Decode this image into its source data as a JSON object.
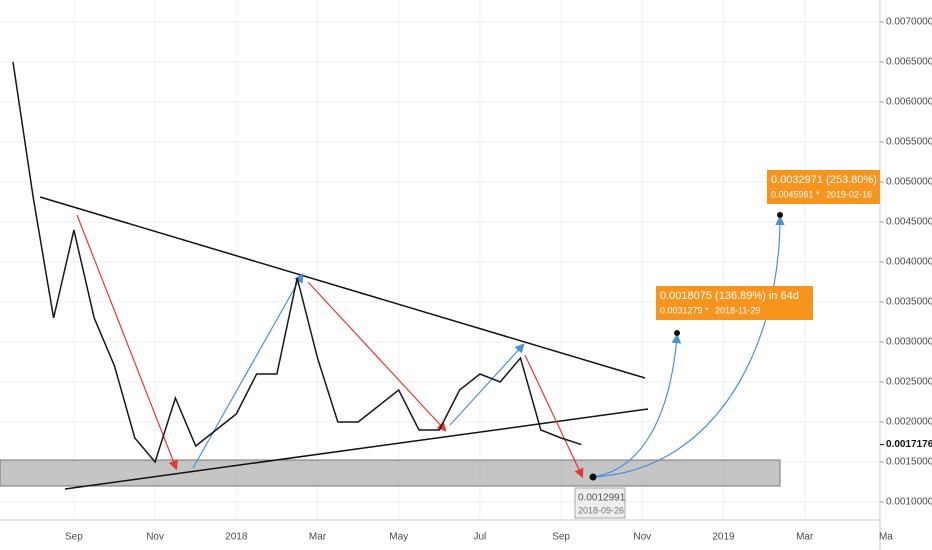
{
  "chart_data": {
    "type": "line",
    "color": "#131722",
    "grid": true,
    "categories": [
      null,
      null,
      null,
      "Sep",
      null,
      null,
      null,
      "Nov",
      null,
      null,
      null,
      "2018",
      null,
      null,
      null,
      "Mar",
      null,
      null,
      null,
      "May",
      null,
      null,
      null,
      "Jul",
      null,
      null,
      null,
      "Sep",
      null,
      null,
      null,
      "Nov",
      null,
      null,
      null,
      "2019",
      null,
      null,
      null,
      "Mar",
      null,
      null,
      null,
      "Ma"
    ],
    "values": [
      0.0065,
      0.0048,
      0.0033,
      0.0044,
      0.0033,
      0.0027,
      0.0018,
      0.0015,
      0.0023,
      0.0017,
      0.0019,
      0.0021,
      0.0026,
      0.0026,
      0.0038,
      0.0028,
      0.002,
      0.002,
      0.0022,
      0.0024,
      0.0019,
      0.0019,
      0.0024,
      0.0026,
      0.0025,
      0.0028,
      0.0019,
      0.0018,
      0.0017176,
      null,
      null,
      null,
      null,
      null,
      null,
      null,
      null,
      null,
      null,
      null,
      null,
      null,
      null,
      null
    ],
    "ylim": [
      0.000775,
      0.007275
    ],
    "yticks": [
      {
        "value": 0.001,
        "label": "0.0010000"
      },
      {
        "value": 0.0015,
        "label": "0.0015000"
      },
      {
        "value": 0.002,
        "label": "0.0020000"
      },
      {
        "value": 0.0025,
        "label": "0.0025000"
      },
      {
        "value": 0.003,
        "label": "0.0030000"
      },
      {
        "value": 0.0035,
        "label": "0.0035000"
      },
      {
        "value": 0.004,
        "label": "0.0040000"
      },
      {
        "value": 0.0045,
        "label": "0.0045000"
      },
      {
        "value": 0.005,
        "label": "0.0050000"
      },
      {
        "value": 0.0055,
        "label": "0.0055000"
      },
      {
        "value": 0.006,
        "label": "0.0060000"
      },
      {
        "value": 0.0065,
        "label": "0.0065000"
      },
      {
        "value": 0.007,
        "label": "0.0070000"
      }
    ],
    "last_price": 0.0017176,
    "annotations": [
      {
        "title": "0.0032971 (253.80%)",
        "price": "0.0045961",
        "separator": "*",
        "date": "2019-02-16"
      },
      {
        "title": "0.0018075 (136.89%) in 64d",
        "price": "0.0031279",
        "separator": "*",
        "date": "2018-11-29"
      },
      {
        "title": "0.0012991",
        "date": "2018-09-26"
      }
    ]
  }
}
